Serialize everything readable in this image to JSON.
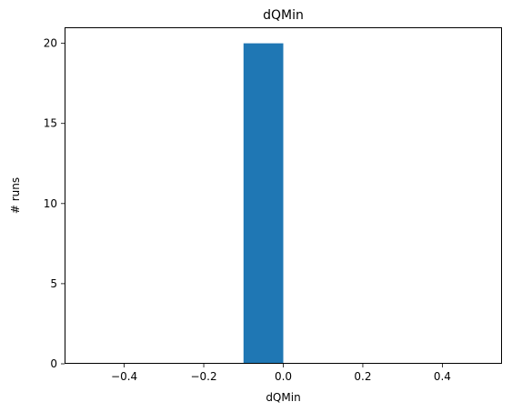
{
  "chart_data": {
    "type": "bar",
    "title": "dQMin",
    "xlabel": "dQMin",
    "ylabel": "# runs",
    "xlim": [
      -0.55,
      0.55
    ],
    "ylim": [
      0,
      21
    ],
    "xticks": [
      -0.4,
      -0.2,
      0.0,
      0.2,
      0.4
    ],
    "xtick_labels": [
      "−0.4",
      "−0.2",
      "0.0",
      "0.2",
      "0.4"
    ],
    "yticks": [
      0,
      5,
      10,
      15,
      20
    ],
    "ytick_labels": [
      "0",
      "5",
      "10",
      "15",
      "20"
    ],
    "bins": [
      {
        "x0": -0.1,
        "x1": 0.0,
        "count": 20
      }
    ],
    "bar_color": "#1f77b4",
    "grid": false,
    "legend": "none"
  }
}
